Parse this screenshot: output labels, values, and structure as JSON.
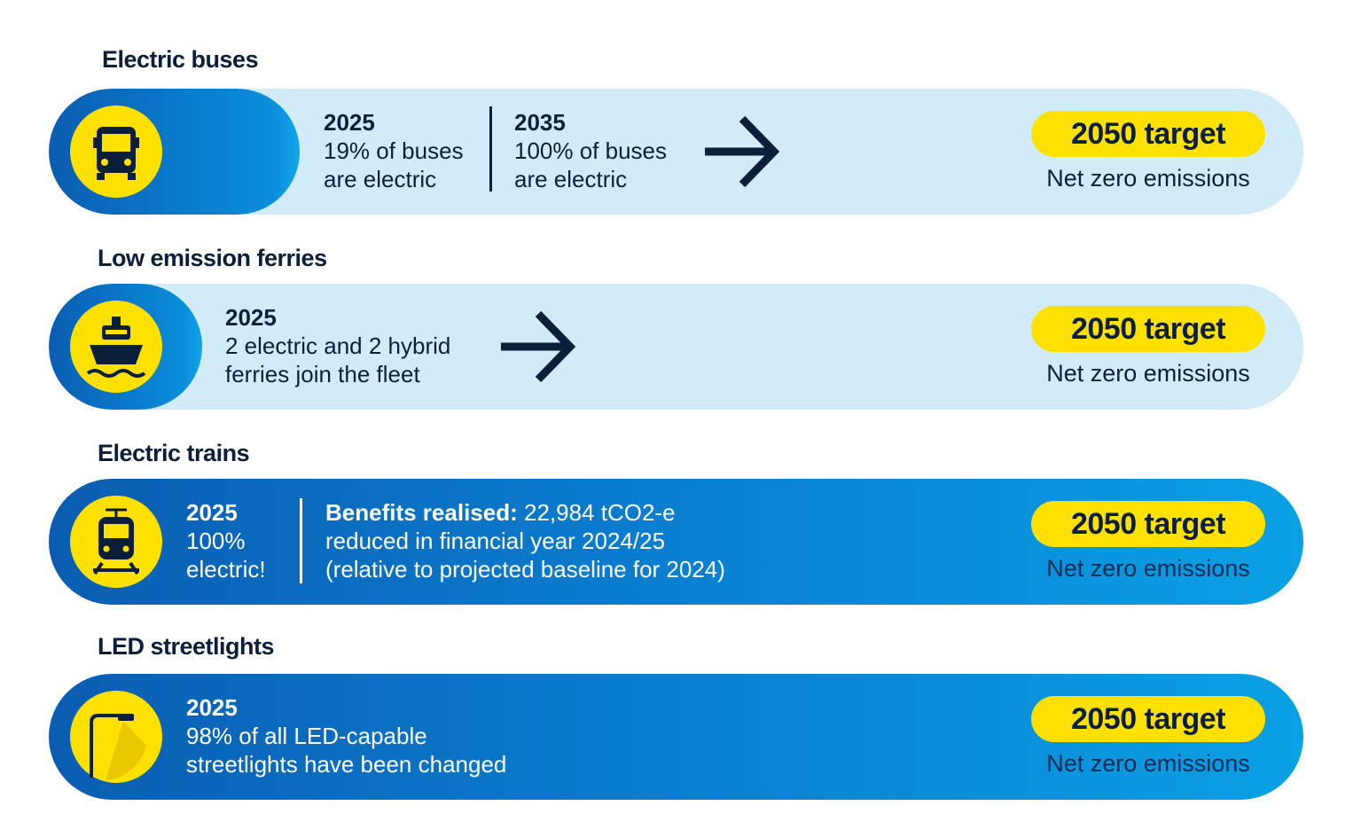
{
  "rows": [
    {
      "title": "Electric buses",
      "stages": [
        {
          "year": "2025",
          "lines": [
            "19% of buses",
            "are electric"
          ]
        },
        {
          "year": "2035",
          "lines": [
            "100% of buses",
            "are electric"
          ]
        }
      ],
      "target": {
        "label": "2050 target",
        "text": "Net zero emissions"
      }
    },
    {
      "title": "Low emission ferries",
      "stages": [
        {
          "year": "2025",
          "lines": [
            "2 electric and 2 hybrid",
            "ferries join the fleet"
          ]
        }
      ],
      "target": {
        "label": "2050 target",
        "text": "Net zero emissions"
      }
    },
    {
      "title": "Electric trains",
      "stages": [
        {
          "year": "2025",
          "lines": [
            "100%",
            "electric!"
          ]
        },
        {
          "label": "Benefits realised:",
          "lines": [
            "22,984 tCO2-e",
            "reduced in financial year 2024/25",
            "(relative to projected baseline for 2024)"
          ]
        }
      ],
      "target": {
        "label": "2050 target",
        "text": "Net zero emissions"
      }
    },
    {
      "title": "LED streetlights",
      "stages": [
        {
          "year": "2025",
          "lines": [
            "98% of all LED-capable",
            "streetlights have been changed"
          ]
        }
      ],
      "target": {
        "label": "2050 target",
        "text": "Net zero emissions"
      }
    }
  ]
}
